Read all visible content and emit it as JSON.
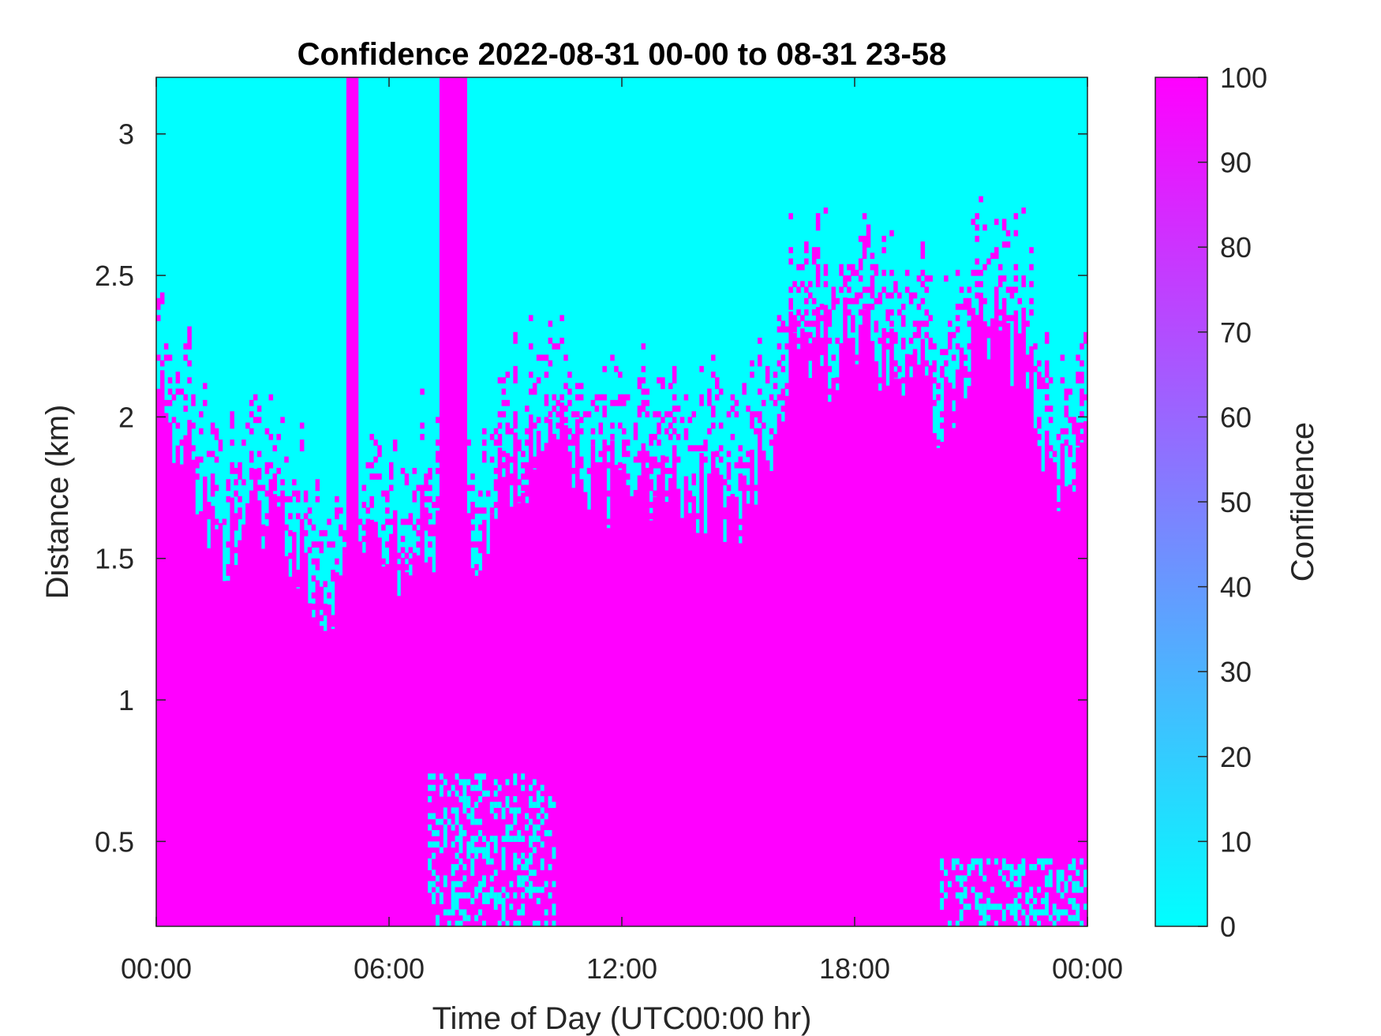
{
  "chart_data": {
    "type": "heatmap",
    "title": "Confidence 2022-08-31 00-00 to 08-31 23-58",
    "xlabel": "Time of Day (UTC00:00 hr)",
    "ylabel": "Distance (km)",
    "x_range_hours": [
      0,
      24
    ],
    "x_ticks": [
      {
        "hour": 0,
        "label": "00:00"
      },
      {
        "hour": 6,
        "label": "06:00"
      },
      {
        "hour": 12,
        "label": "12:00"
      },
      {
        "hour": 18,
        "label": "18:00"
      },
      {
        "hour": 24,
        "label": "00:00"
      }
    ],
    "ylim": [
      0.2,
      3.2
    ],
    "y_ticks": [
      {
        "value": 0.5,
        "label": "0.5"
      },
      {
        "value": 1,
        "label": "1"
      },
      {
        "value": 1.5,
        "label": "1.5"
      },
      {
        "value": 2,
        "label": "2"
      },
      {
        "value": 2.5,
        "label": "2.5"
      },
      {
        "value": 3,
        "label": "3"
      }
    ],
    "colorbar": {
      "label": "Confidence",
      "range": [
        0,
        100
      ],
      "ticks": [
        "0",
        "10",
        "20",
        "30",
        "40",
        "50",
        "60",
        "70",
        "80",
        "90",
        "100"
      ],
      "color_low": "#00ffff",
      "color_high": "#ff00ff"
    },
    "background_confidence": 0,
    "upper_boundary_km": {
      "hours": [
        0,
        0.5,
        1,
        1.5,
        2,
        2.5,
        3,
        3.5,
        4,
        4.5,
        5,
        5.5,
        6,
        6.5,
        7,
        7.5,
        8,
        8.5,
        9,
        9.5,
        10,
        10.5,
        11,
        11.5,
        12,
        12.5,
        13,
        13.5,
        14,
        14.5,
        15,
        15.5,
        16,
        16.5,
        17,
        17.5,
        18,
        18.5,
        19,
        19.5,
        20,
        20.5,
        21,
        21.5,
        22,
        22.5,
        23,
        23.5,
        24
      ],
      "values": [
        2.05,
        2.0,
        1.75,
        1.55,
        1.6,
        1.75,
        1.65,
        1.5,
        1.45,
        1.35,
        1.4,
        1.6,
        1.5,
        1.55,
        1.6,
        1.65,
        1.55,
        1.65,
        1.75,
        1.8,
        1.95,
        1.9,
        1.85,
        1.75,
        1.75,
        1.75,
        1.75,
        1.75,
        1.75,
        1.7,
        1.7,
        1.8,
        2.05,
        2.3,
        2.25,
        2.2,
        2.35,
        2.2,
        2.15,
        2.25,
        2.05,
        2.0,
        2.3,
        2.35,
        2.25,
        2.2,
        1.85,
        1.75,
        1.9
      ]
    },
    "full_column_bands_hours": [
      [
        4.9,
        5.2
      ],
      [
        7.3,
        8.0
      ]
    ],
    "low_clear_region": {
      "hours": [
        7.0,
        10.3
      ],
      "top_km": 0.75,
      "bottom_km": 0.2
    },
    "low_clear_region_2": {
      "hours": [
        20.2,
        24
      ],
      "top_km": 0.45,
      "bottom_km": 0.2
    },
    "value_inside": 100,
    "value_outside": 0
  }
}
